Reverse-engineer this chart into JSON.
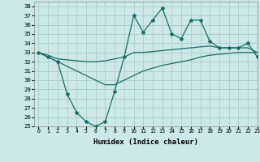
{
  "xlabel": "Humidex (Indice chaleur)",
  "background_color": "#cce8e8",
  "grid_color": "#aacccc",
  "line_color": "#1a6b6b",
  "xlim": [
    -0.5,
    23
  ],
  "ylim": [
    25,
    38.5
  ],
  "yticks": [
    25,
    26,
    27,
    28,
    29,
    30,
    31,
    32,
    33,
    34,
    35,
    36,
    37,
    38
  ],
  "xticks": [
    0,
    1,
    2,
    3,
    4,
    5,
    6,
    7,
    8,
    9,
    10,
    11,
    12,
    13,
    14,
    15,
    16,
    17,
    18,
    19,
    20,
    21,
    22,
    23
  ],
  "series": {
    "line1_x": [
      0,
      1,
      2,
      3,
      4,
      5,
      6,
      7,
      8,
      9,
      10,
      11,
      12,
      13,
      14,
      15,
      16,
      17,
      18,
      19,
      20,
      21,
      22,
      23
    ],
    "line1_y": [
      33.0,
      32.5,
      32.0,
      28.5,
      26.5,
      25.5,
      25.0,
      25.5,
      28.8,
      32.5,
      37.0,
      35.2,
      36.5,
      37.8,
      35.0,
      34.5,
      36.5,
      36.5,
      34.2,
      33.5,
      33.5,
      33.5,
      34.0,
      32.5
    ],
    "line2_x": [
      0,
      1,
      2,
      3,
      4,
      5,
      6,
      7,
      8,
      9,
      10,
      11,
      12,
      13,
      14,
      15,
      16,
      17,
      18,
      19,
      20,
      21,
      22,
      23
    ],
    "line2_y": [
      33.0,
      32.7,
      32.3,
      32.2,
      32.1,
      32.0,
      32.0,
      32.1,
      32.3,
      32.5,
      33.0,
      33.0,
      33.1,
      33.2,
      33.3,
      33.4,
      33.5,
      33.6,
      33.7,
      33.5,
      33.5,
      33.5,
      33.5,
      33.0
    ],
    "line3_x": [
      0,
      1,
      2,
      3,
      4,
      5,
      6,
      7,
      8,
      9,
      10,
      11,
      12,
      13,
      14,
      15,
      16,
      17,
      18,
      19,
      20,
      21,
      22,
      23
    ],
    "line3_y": [
      33.0,
      32.5,
      32.0,
      31.5,
      31.0,
      30.5,
      30.0,
      29.5,
      29.5,
      30.0,
      30.5,
      31.0,
      31.3,
      31.6,
      31.8,
      32.0,
      32.2,
      32.5,
      32.7,
      32.8,
      32.9,
      33.0,
      33.0,
      33.0
    ]
  }
}
